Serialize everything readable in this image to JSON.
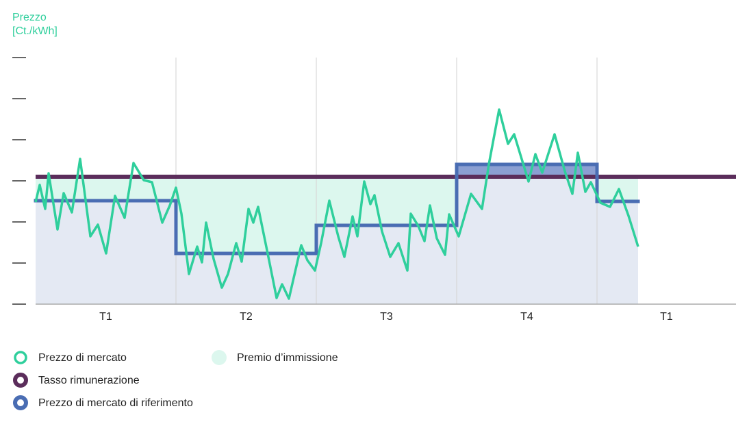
{
  "chart_data": {
    "type": "line",
    "ylabel": [
      "Prezzo",
      "[Ct./kWh]"
    ],
    "categories": [
      "T1",
      "T2",
      "T3",
      "T4",
      "T1"
    ],
    "xlim": [
      0,
      1023
    ],
    "xticks": [
      205,
      410,
      615,
      820
    ],
    "ylim": [
      0,
      360
    ],
    "yticks": [
      0,
      60,
      120,
      180,
      240,
      300,
      360
    ],
    "grid": true,
    "series": [
      {
        "name": "Prezzo di mercato",
        "color": "#2fcf9c",
        "x": [
          0,
          6,
          14,
          19,
          32,
          41,
          53,
          65,
          80,
          91,
          103,
          116,
          130,
          143,
          158,
          170,
          185,
          196,
          205,
          213,
          224,
          236,
          243,
          249,
          260,
          272,
          281,
          293,
          301,
          311,
          318,
          325,
          341,
          352,
          360,
          370,
          388,
          397,
          408,
          417,
          429,
          442,
          451,
          463,
          470,
          480,
          489,
          495,
          506,
          518,
          530,
          543,
          548,
          559,
          568,
          576,
          586,
          598,
          604,
          618,
          636,
          652,
          662,
          677,
          690,
          699,
          720,
          730,
          740,
          758,
          773,
          784,
          792,
          803,
          811,
          825,
          839,
          852,
          866,
          880
        ],
        "values": [
          149,
          174,
          139,
          191,
          109,
          162,
          134,
          212,
          99,
          116,
          74,
          158,
          126,
          206,
          181,
          178,
          119,
          144,
          170,
          132,
          44,
          84,
          61,
          119,
          66,
          24,
          44,
          89,
          62,
          139,
          119,
          142,
          64,
          9,
          29,
          8,
          86,
          64,
          49,
          89,
          151,
          99,
          69,
          128,
          99,
          179,
          146,
          159,
          106,
          69,
          89,
          49,
          132,
          114,
          92,
          144,
          96,
          72,
          131,
          99,
          161,
          139,
          204,
          284,
          234,
          248,
          179,
          219,
          192,
          248,
          194,
          161,
          221,
          164,
          178,
          148,
          142,
          168,
          129,
          84
        ]
      },
      {
        "name": "Tasso rimunerazione",
        "color": "#5b2d5b",
        "x": [
          0,
          1023
        ],
        "values": [
          186,
          186
        ]
      },
      {
        "name": "Prezzo di mercato di riferimento",
        "color": "#4a6db3",
        "step": true,
        "x": [
          0,
          205,
          410,
          615,
          820,
          880
        ],
        "values": [
          151,
          74,
          115,
          204,
          150,
          150
        ]
      }
    ],
    "areas": [
      {
        "name": "Premio d’immissione",
        "color": "#dcf7ee"
      }
    ]
  }
}
